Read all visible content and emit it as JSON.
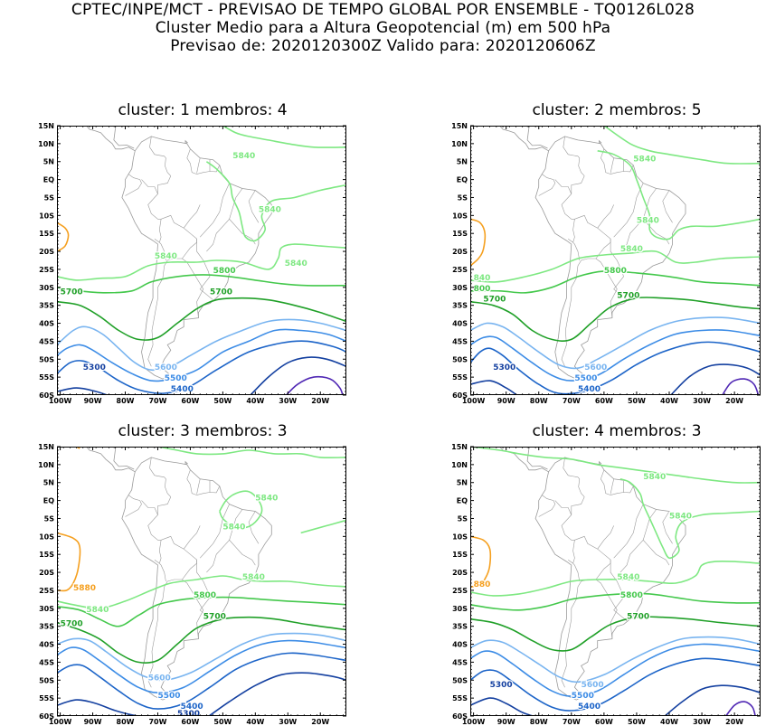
{
  "header": {
    "line1": "CPTEC/INPE/MCT - PREVISAO DE TEMPO GLOBAL POR ENSEMBLE - TQ0126L028",
    "line2": "Cluster Medio para a Altura Geopotencial (m) em 500 hPa",
    "line3": "Previsao de: 2020120300Z   Valido para: 2020120606Z"
  },
  "lat_labels": [
    "15N",
    "10N",
    "5N",
    "EQ",
    "5S",
    "10S",
    "15S",
    "20S",
    "25S",
    "30S",
    "35S",
    "40S",
    "45S",
    "50S",
    "55S",
    "60S"
  ],
  "lon_labels": [
    "100W",
    "90W",
    "80W",
    "70W",
    "60W",
    "50W",
    "40W",
    "30W",
    "20W"
  ],
  "colors": {
    "c5880": "#f5a020",
    "c5840": "#7ee882",
    "c5800": "#44c84c",
    "c5700": "#20a028",
    "c5600": "#78b4f0",
    "c5500": "#3c8ce6",
    "c5400": "#1c64c8",
    "c5300": "#1440a0",
    "c5200": "#5028b4",
    "coast": "#9a9a9a"
  },
  "panels": [
    {
      "title": "cluster: 1   membros: 4",
      "labels": [
        {
          "text": "5840",
          "lon": -47,
          "lat": 6,
          "color": "c5840"
        },
        {
          "text": "5840",
          "lon": -39,
          "lat": -9,
          "color": "c5840"
        },
        {
          "text": "5840",
          "lon": -71,
          "lat": -22,
          "color": "c5840"
        },
        {
          "text": "5840",
          "lon": -31,
          "lat": -24,
          "color": "c5840"
        },
        {
          "text": "5800",
          "lon": -53,
          "lat": -26,
          "color": "c5800"
        },
        {
          "text": "5700",
          "lon": -100,
          "lat": -32,
          "color": "c5700"
        },
        {
          "text": "5700",
          "lon": -54,
          "lat": -32,
          "color": "c5700"
        },
        {
          "text": "5600",
          "lon": -71,
          "lat": -53,
          "color": "c5600"
        },
        {
          "text": "5500",
          "lon": -68,
          "lat": -56,
          "color": "c5500"
        },
        {
          "text": "5400",
          "lon": -66,
          "lat": -59,
          "color": "c5400"
        },
        {
          "text": "5300",
          "lon": -93,
          "lat": -53,
          "color": "c5300"
        }
      ]
    },
    {
      "title": "cluster: 2   membros: 5",
      "labels": [
        {
          "text": "5840",
          "lon": -51,
          "lat": 5,
          "color": "c5840"
        },
        {
          "text": "5840",
          "lon": -50,
          "lat": -12,
          "color": "c5840"
        },
        {
          "text": "5840",
          "lon": -55,
          "lat": -20,
          "color": "c5840"
        },
        {
          "text": "840",
          "lon": -100,
          "lat": -28,
          "color": "c5840"
        },
        {
          "text": "5800",
          "lon": -60,
          "lat": -26,
          "color": "c5800"
        },
        {
          "text": "800",
          "lon": -100,
          "lat": -31,
          "color": "c5800"
        },
        {
          "text": "5700",
          "lon": -97,
          "lat": -34,
          "color": "c5700"
        },
        {
          "text": "5700",
          "lon": -56,
          "lat": -33,
          "color": "c5700"
        },
        {
          "text": "5600",
          "lon": -66,
          "lat": -53,
          "color": "c5600"
        },
        {
          "text": "5500",
          "lon": -69,
          "lat": -56,
          "color": "c5500"
        },
        {
          "text": "5400",
          "lon": -68,
          "lat": -59,
          "color": "c5400"
        },
        {
          "text": "5300",
          "lon": -94,
          "lat": -53,
          "color": "c5300"
        }
      ]
    },
    {
      "title": "cluster: 3   membros: 3",
      "labels": [
        {
          "text": "5840",
          "lon": -40,
          "lat": 0,
          "color": "c5840"
        },
        {
          "text": "5840",
          "lon": -50,
          "lat": -8,
          "color": "c5840"
        },
        {
          "text": "5880",
          "lon": -96,
          "lat": -25,
          "color": "c5880"
        },
        {
          "text": "5840",
          "lon": -92,
          "lat": -31,
          "color": "c5840"
        },
        {
          "text": "5840",
          "lon": -44,
          "lat": -22,
          "color": "c5840"
        },
        {
          "text": "5800",
          "lon": -59,
          "lat": -27,
          "color": "c5800"
        },
        {
          "text": "5700",
          "lon": -100,
          "lat": -35,
          "color": "c5700"
        },
        {
          "text": "5700",
          "lon": -56,
          "lat": -33,
          "color": "c5700"
        },
        {
          "text": "5600",
          "lon": -73,
          "lat": -50,
          "color": "c5600"
        },
        {
          "text": "5500",
          "lon": -70,
          "lat": -55,
          "color": "c5500"
        },
        {
          "text": "5400",
          "lon": -63,
          "lat": -58,
          "color": "c5400"
        },
        {
          "text": "5300",
          "lon": -64,
          "lat": -60,
          "color": "c5300"
        }
      ]
    },
    {
      "title": "cluster: 4   membros: 3",
      "labels": [
        {
          "text": "5840",
          "lon": -48,
          "lat": 6,
          "color": "c5840"
        },
        {
          "text": "5840",
          "lon": -40,
          "lat": -5,
          "color": "c5840"
        },
        {
          "text": "5840",
          "lon": -56,
          "lat": -22,
          "color": "c5840"
        },
        {
          "text": "880",
          "lon": -100,
          "lat": -24,
          "color": "c5880"
        },
        {
          "text": "5800",
          "lon": -55,
          "lat": -27,
          "color": "c5800"
        },
        {
          "text": "5700",
          "lon": -53,
          "lat": -33,
          "color": "c5700"
        },
        {
          "text": "5600",
          "lon": -67,
          "lat": -52,
          "color": "c5600"
        },
        {
          "text": "5500",
          "lon": -70,
          "lat": -55,
          "color": "c5500"
        },
        {
          "text": "5400",
          "lon": -68,
          "lat": -58,
          "color": "c5400"
        },
        {
          "text": "5300",
          "lon": -95,
          "lat": -52,
          "color": "c5300"
        }
      ]
    }
  ]
}
